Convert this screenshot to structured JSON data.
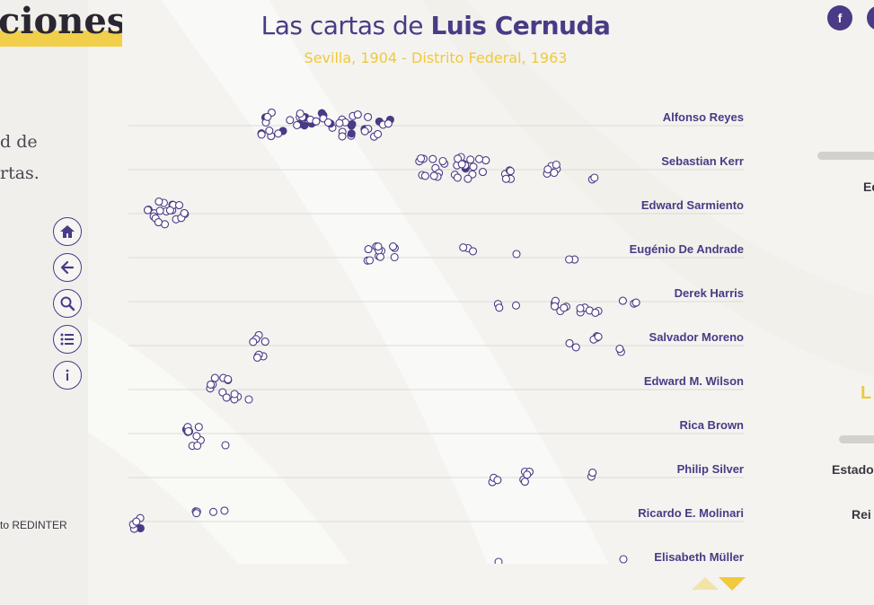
{
  "colors": {
    "accent": "#4b3a86",
    "highlight": "#f0c93d"
  },
  "left": {
    "title_fragment": "ciones",
    "text_line1": "d de",
    "text_line2": "rtas.",
    "footer": "to REDINTER"
  },
  "nav_icons": [
    "home-icon",
    "back-arrow-icon",
    "search-icon",
    "list-icon",
    "info-icon"
  ],
  "header": {
    "title_prefix": "Las cartas de ",
    "title_name": "Luis Cernuda",
    "subtitle": "Sevilla, 1904 - Distrito Federal, 1963"
  },
  "correspondents": [
    "Alfonso Reyes",
    "Sebastian Kerr",
    "Edward Sarmiento",
    "Eugénio De Andrade",
    "Derek Harris",
    "Salvador Moreno",
    "Edward M. Wilson",
    "Rica Brown",
    "Philip Silver",
    "Ricardo E. Molinari",
    "Elisabeth Müller"
  ],
  "right": {
    "fragment_ed": "Ed",
    "fragment_l": "L",
    "fragment_estado": "Estado",
    "fragment_rei": "Rei"
  },
  "social": {
    "facebook_label": "f"
  },
  "scroll": {
    "up": "scroll-up",
    "down": "scroll-down"
  }
}
